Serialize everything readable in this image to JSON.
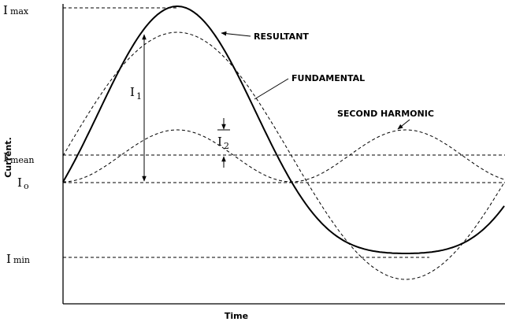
{
  "axes": {
    "y_label": "Current.",
    "x_label": "Time"
  },
  "levels": [
    {
      "symbol": "I",
      "subscript": "max"
    },
    {
      "symbol": "I",
      "subscript": "mean"
    },
    {
      "symbol": "I",
      "subscript": "o"
    },
    {
      "symbol": "I",
      "subscript": "min"
    }
  ],
  "magnitudes": [
    {
      "symbol": "I",
      "subscript": "1"
    },
    {
      "symbol": "I",
      "subscript": "2"
    }
  ],
  "curve_labels": [
    "RESULTANT",
    "FUNDAMENTAL",
    "SECOND HARMONIC"
  ]
}
